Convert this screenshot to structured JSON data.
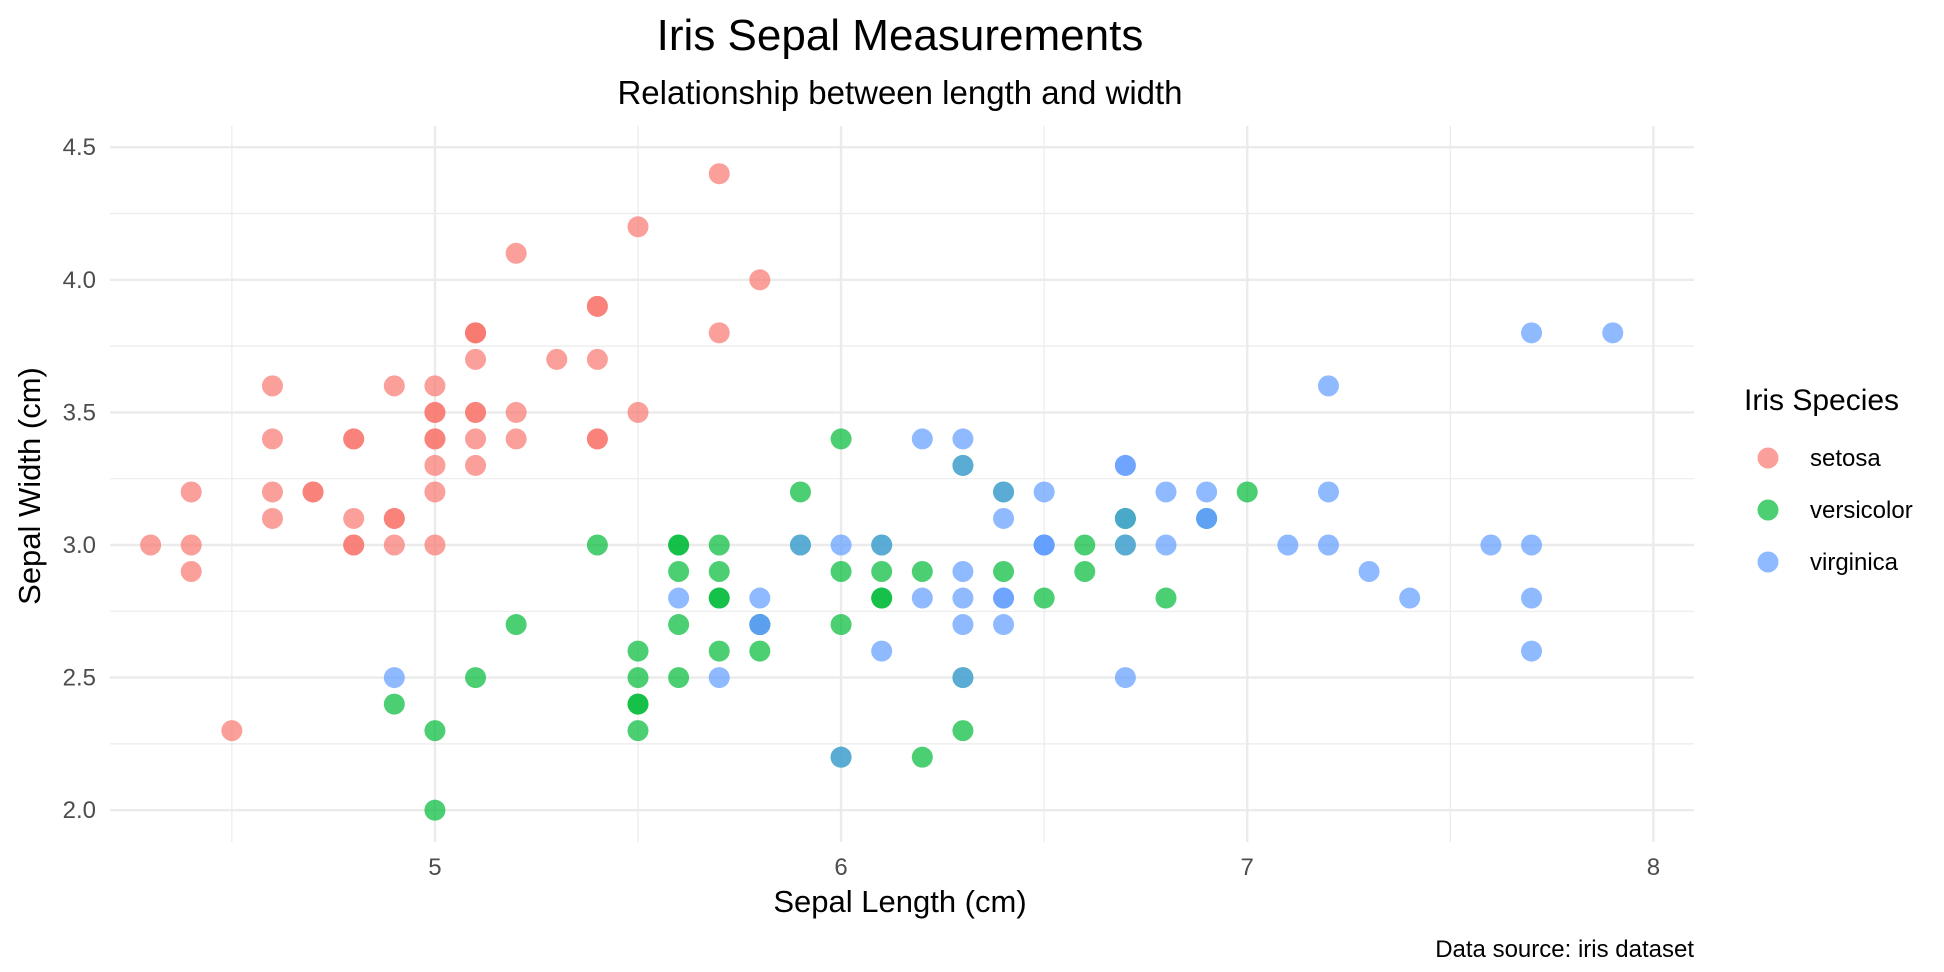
{
  "chart_data": {
    "type": "scatter",
    "title": "Iris Sepal Measurements",
    "subtitle": "Relationship between length and width",
    "xlabel": "Sepal Length (cm)",
    "ylabel": "Sepal Width (cm)",
    "caption": "Data source: iris dataset",
    "xlim": [
      4.2,
      8.1
    ],
    "ylim": [
      1.88,
      4.58
    ],
    "x_ticks": [
      5,
      6,
      7,
      8
    ],
    "x_tick_labels": [
      "5",
      "6",
      "7",
      "8"
    ],
    "y_ticks": [
      2.0,
      2.5,
      3.0,
      3.5,
      4.0,
      4.5
    ],
    "y_tick_labels": [
      "2.0",
      "2.5",
      "3.0",
      "3.5",
      "4.0",
      "4.5"
    ],
    "grid": true,
    "legend": {
      "title": "Iris Species",
      "position": "right"
    },
    "series": [
      {
        "name": "setosa",
        "color": "#F8766D",
        "points": [
          [
            5.1,
            3.5
          ],
          [
            4.9,
            3.0
          ],
          [
            4.7,
            3.2
          ],
          [
            4.6,
            3.1
          ],
          [
            5.0,
            3.6
          ],
          [
            5.4,
            3.9
          ],
          [
            4.6,
            3.4
          ],
          [
            5.0,
            3.4
          ],
          [
            4.4,
            2.9
          ],
          [
            4.9,
            3.1
          ],
          [
            5.4,
            3.7
          ],
          [
            4.8,
            3.4
          ],
          [
            4.8,
            3.0
          ],
          [
            4.3,
            3.0
          ],
          [
            5.8,
            4.0
          ],
          [
            5.7,
            4.4
          ],
          [
            5.4,
            3.9
          ],
          [
            5.1,
            3.5
          ],
          [
            5.7,
            3.8
          ],
          [
            5.1,
            3.8
          ],
          [
            5.4,
            3.4
          ],
          [
            5.1,
            3.7
          ],
          [
            4.6,
            3.6
          ],
          [
            5.1,
            3.3
          ],
          [
            4.8,
            3.4
          ],
          [
            5.0,
            3.0
          ],
          [
            5.0,
            3.4
          ],
          [
            5.2,
            3.5
          ],
          [
            5.2,
            3.4
          ],
          [
            4.7,
            3.2
          ],
          [
            4.8,
            3.1
          ],
          [
            5.4,
            3.4
          ],
          [
            5.2,
            4.1
          ],
          [
            5.5,
            4.2
          ],
          [
            4.9,
            3.1
          ],
          [
            5.0,
            3.2
          ],
          [
            5.5,
            3.5
          ],
          [
            4.9,
            3.6
          ],
          [
            4.4,
            3.0
          ],
          [
            5.1,
            3.4
          ],
          [
            5.0,
            3.5
          ],
          [
            4.5,
            2.3
          ],
          [
            4.4,
            3.2
          ],
          [
            5.0,
            3.5
          ],
          [
            5.1,
            3.8
          ],
          [
            4.8,
            3.0
          ],
          [
            5.1,
            3.8
          ],
          [
            4.6,
            3.2
          ],
          [
            5.3,
            3.7
          ],
          [
            5.0,
            3.3
          ]
        ]
      },
      {
        "name": "versicolor",
        "color": "#00BA38",
        "points": [
          [
            7.0,
            3.2
          ],
          [
            6.4,
            3.2
          ],
          [
            6.9,
            3.1
          ],
          [
            5.5,
            2.3
          ],
          [
            6.5,
            2.8
          ],
          [
            5.7,
            2.8
          ],
          [
            6.3,
            3.3
          ],
          [
            4.9,
            2.4
          ],
          [
            6.6,
            2.9
          ],
          [
            5.2,
            2.7
          ],
          [
            5.0,
            2.0
          ],
          [
            5.9,
            3.0
          ],
          [
            6.0,
            2.2
          ],
          [
            6.1,
            2.9
          ],
          [
            5.6,
            2.9
          ],
          [
            6.7,
            3.1
          ],
          [
            5.6,
            3.0
          ],
          [
            5.8,
            2.7
          ],
          [
            6.2,
            2.2
          ],
          [
            5.6,
            2.5
          ],
          [
            5.9,
            3.2
          ],
          [
            6.1,
            2.8
          ],
          [
            6.3,
            2.5
          ],
          [
            6.1,
            2.8
          ],
          [
            6.4,
            2.9
          ],
          [
            6.6,
            3.0
          ],
          [
            6.8,
            2.8
          ],
          [
            6.7,
            3.0
          ],
          [
            6.0,
            2.9
          ],
          [
            5.7,
            2.6
          ],
          [
            5.5,
            2.4
          ],
          [
            5.5,
            2.4
          ],
          [
            5.8,
            2.7
          ],
          [
            6.0,
            2.7
          ],
          [
            5.4,
            3.0
          ],
          [
            6.0,
            3.4
          ],
          [
            6.7,
            3.1
          ],
          [
            6.3,
            2.3
          ],
          [
            5.6,
            3.0
          ],
          [
            5.5,
            2.5
          ],
          [
            5.5,
            2.6
          ],
          [
            6.1,
            3.0
          ],
          [
            5.8,
            2.6
          ],
          [
            5.0,
            2.3
          ],
          [
            5.6,
            2.7
          ],
          [
            5.7,
            3.0
          ],
          [
            5.7,
            2.9
          ],
          [
            6.2,
            2.9
          ],
          [
            5.1,
            2.5
          ],
          [
            5.7,
            2.8
          ]
        ]
      },
      {
        "name": "virginica",
        "color": "#619CFF",
        "points": [
          [
            6.3,
            3.3
          ],
          [
            5.8,
            2.7
          ],
          [
            7.1,
            3.0
          ],
          [
            6.3,
            2.9
          ],
          [
            6.5,
            3.0
          ],
          [
            7.6,
            3.0
          ],
          [
            4.9,
            2.5
          ],
          [
            7.3,
            2.9
          ],
          [
            6.7,
            2.5
          ],
          [
            7.2,
            3.6
          ],
          [
            6.5,
            3.2
          ],
          [
            6.4,
            2.7
          ],
          [
            6.8,
            3.0
          ],
          [
            5.7,
            2.5
          ],
          [
            5.8,
            2.8
          ],
          [
            6.4,
            3.2
          ],
          [
            6.5,
            3.0
          ],
          [
            7.7,
            3.8
          ],
          [
            7.7,
            2.6
          ],
          [
            6.0,
            2.2
          ],
          [
            6.9,
            3.2
          ],
          [
            5.6,
            2.8
          ],
          [
            7.7,
            2.8
          ],
          [
            6.3,
            2.7
          ],
          [
            6.7,
            3.3
          ],
          [
            7.2,
            3.2
          ],
          [
            6.2,
            2.8
          ],
          [
            6.1,
            3.0
          ],
          [
            6.4,
            2.8
          ],
          [
            7.2,
            3.0
          ],
          [
            7.4,
            2.8
          ],
          [
            7.9,
            3.8
          ],
          [
            6.4,
            2.8
          ],
          [
            6.3,
            2.8
          ],
          [
            6.1,
            2.6
          ],
          [
            7.7,
            3.0
          ],
          [
            6.3,
            3.4
          ],
          [
            6.4,
            3.1
          ],
          [
            6.0,
            3.0
          ],
          [
            6.9,
            3.1
          ],
          [
            6.7,
            3.1
          ],
          [
            6.9,
            3.1
          ],
          [
            5.8,
            2.7
          ],
          [
            6.8,
            3.2
          ],
          [
            6.7,
            3.3
          ],
          [
            6.7,
            3.0
          ],
          [
            6.3,
            2.5
          ],
          [
            6.5,
            3.0
          ],
          [
            6.2,
            3.4
          ],
          [
            5.9,
            3.0
          ]
        ]
      }
    ]
  }
}
